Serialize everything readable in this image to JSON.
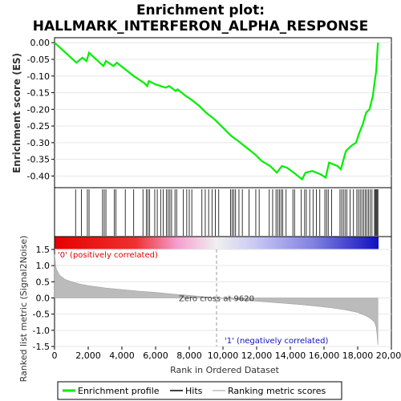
{
  "chart_data": [
    {
      "type": "line",
      "title_line1": "Enrichment plot:",
      "title_line2": "HALLMARK_INTERFERON_ALPHA_RESPONSE",
      "ylabel": "Enrichment score (ES)",
      "xlim": [
        0,
        20000
      ],
      "ylim": [
        -0.435,
        0.015
      ],
      "yticks": [
        "0.00",
        "-0.05",
        "-0.10",
        "-0.15",
        "-0.20",
        "-0.25",
        "-0.30",
        "-0.35",
        "-0.40"
      ],
      "ytick_values": [
        0,
        -0.05,
        -0.1,
        -0.15,
        -0.2,
        -0.25,
        -0.3,
        -0.35,
        -0.4
      ],
      "series": [
        {
          "name": "Enrichment profile",
          "color": "#00ee00",
          "x": [
            0,
            1300,
            1650,
            1900,
            2050,
            2900,
            3050,
            3500,
            3700,
            4200,
            4700,
            5300,
            5500,
            5600,
            6000,
            6600,
            6800,
            7200,
            7300,
            7800,
            8100,
            8600,
            9000,
            9500,
            10000,
            10500,
            10900,
            11400,
            11900,
            12300,
            12800,
            13200,
            13500,
            13800,
            14200,
            14700,
            14900,
            15300,
            15800,
            16100,
            16300,
            16800,
            17000,
            17300,
            17600,
            17900,
            18100,
            18300,
            18500,
            18700,
            18900,
            19000,
            19100,
            19200
          ],
          "y": [
            0,
            -0.06,
            -0.045,
            -0.055,
            -0.03,
            -0.07,
            -0.055,
            -0.07,
            -0.06,
            -0.08,
            -0.1,
            -0.12,
            -0.13,
            -0.115,
            -0.125,
            -0.135,
            -0.13,
            -0.145,
            -0.14,
            -0.16,
            -0.17,
            -0.19,
            -0.21,
            -0.23,
            -0.255,
            -0.28,
            -0.295,
            -0.315,
            -0.335,
            -0.355,
            -0.37,
            -0.39,
            -0.37,
            -0.375,
            -0.39,
            -0.41,
            -0.39,
            -0.385,
            -0.395,
            -0.405,
            -0.36,
            -0.37,
            -0.38,
            -0.325,
            -0.31,
            -0.3,
            -0.27,
            -0.245,
            -0.21,
            -0.2,
            -0.16,
            -0.12,
            -0.085,
            0.0
          ]
        }
      ]
    },
    {
      "type": "hits",
      "xlim": [
        0,
        20000
      ],
      "hits": [
        1250,
        1600,
        1950,
        2050,
        2850,
        2950,
        3050,
        3550,
        3650,
        4200,
        4700,
        5250,
        5450,
        5550,
        5650,
        5950,
        6100,
        6300,
        6450,
        6650,
        6750,
        6850,
        6950,
        7150,
        7250,
        7650,
        7850,
        8000,
        8150,
        8750,
        8950,
        9150,
        9350,
        9550,
        9750,
        10450,
        10550,
        10650,
        10750,
        10950,
        11150,
        11550,
        11950,
        12150,
        12750,
        12950,
        13150,
        13250,
        13350,
        13450,
        13550,
        13750,
        14150,
        14250,
        14650,
        14850,
        14950,
        15150,
        15350,
        15550,
        15750,
        16050,
        16150,
        16250,
        16450,
        16950,
        17050,
        17150,
        17250,
        17350,
        17550,
        17750,
        17950,
        18050,
        18150,
        18250,
        18350,
        18450,
        18550,
        18650,
        18750,
        18850,
        19000,
        19050,
        19100,
        19150,
        19200
      ]
    },
    {
      "type": "area",
      "ylabel": "Ranked list metric (Signal2Noise)",
      "xlabel": "Rank in Ordered Dataset",
      "xlim": [
        0,
        20000
      ],
      "ylim": [
        -1.5,
        1.5
      ],
      "xticks": [
        "0",
        "2,000",
        "4,000",
        "6,000",
        "8,000",
        "10,000",
        "12,000",
        "14,000",
        "16,000",
        "18,000",
        "20,000"
      ],
      "xtick_values": [
        0,
        2000,
        4000,
        6000,
        8000,
        10000,
        12000,
        14000,
        16000,
        18000,
        20000
      ],
      "yticks": [
        "1.5",
        "1.0",
        "0.5",
        "0.0",
        "-0.5",
        "-1.0",
        "-1.5"
      ],
      "ytick_values": [
        1.5,
        1.0,
        0.5,
        0.0,
        -0.5,
        -1.0,
        -1.5
      ],
      "x": [
        0,
        100,
        300,
        600,
        1000,
        1500,
        2000,
        3000,
        4000,
        5000,
        6000,
        7000,
        8000,
        9000,
        9620,
        10500,
        11500,
        12500,
        13500,
        14500,
        15500,
        16500,
        17300,
        18000,
        18500,
        18800,
        19000,
        19100,
        19150,
        19200
      ],
      "values": [
        1.35,
        0.9,
        0.7,
        0.58,
        0.5,
        0.43,
        0.38,
        0.31,
        0.26,
        0.21,
        0.17,
        0.12,
        0.08,
        0.03,
        0.0,
        -0.04,
        -0.08,
        -0.12,
        -0.16,
        -0.2,
        -0.25,
        -0.31,
        -0.37,
        -0.45,
        -0.55,
        -0.65,
        -0.75,
        -0.9,
        -1.15,
        -1.45
      ],
      "zero_cross_label": "Zero cross at 9620",
      "pos_label": "'0' (positively correlated)",
      "neg_label": "'1' (negatively correlated)",
      "pos_color": "#ff0000",
      "neg_color": "#0000ff"
    }
  ],
  "legend": {
    "items": [
      {
        "label": "Enrichment profile",
        "color": "#00ee00"
      },
      {
        "label": "Hits",
        "color": "#000000"
      },
      {
        "label": "Ranking metric scores",
        "color": "#bbbbbb"
      }
    ]
  }
}
